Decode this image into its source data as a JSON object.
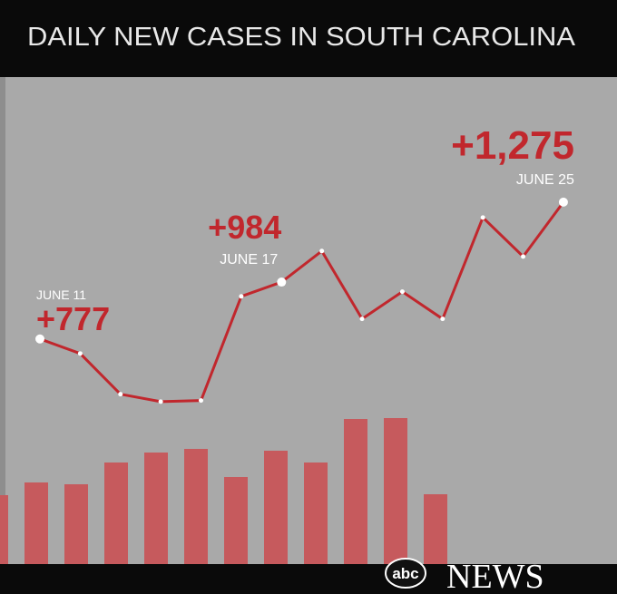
{
  "chart_data": {
    "type": "line",
    "title": "DAILY NEW CASES IN SOUTH CAROLINA",
    "categories": [
      "JUNE 11",
      null,
      null,
      null,
      null,
      null,
      "JUNE 17",
      null,
      null,
      null,
      null,
      null,
      null,
      "JUNE 25"
    ],
    "series": [
      {
        "color": "#c1272d",
        "values": [
          777,
          724,
          576,
          549,
          553,
          932,
          984,
          1097,
          850,
          949,
          850,
          1219,
          1077,
          1275
        ],
        "value_labels": [
          "+777",
          null,
          null,
          null,
          null,
          null,
          "+984",
          null,
          null,
          null,
          null,
          null,
          null,
          "+1,275"
        ]
      }
    ],
    "ylim": [
      400,
      1400
    ],
    "bars": {
      "color": "#c65a5d",
      "values": [
        76,
        90,
        88,
        112,
        123,
        127,
        96,
        125,
        112,
        160,
        161,
        77
      ],
      "ylim": [
        0,
        200
      ]
    }
  },
  "watermark": {
    "brand": "abc",
    "name": "NEWS"
  }
}
